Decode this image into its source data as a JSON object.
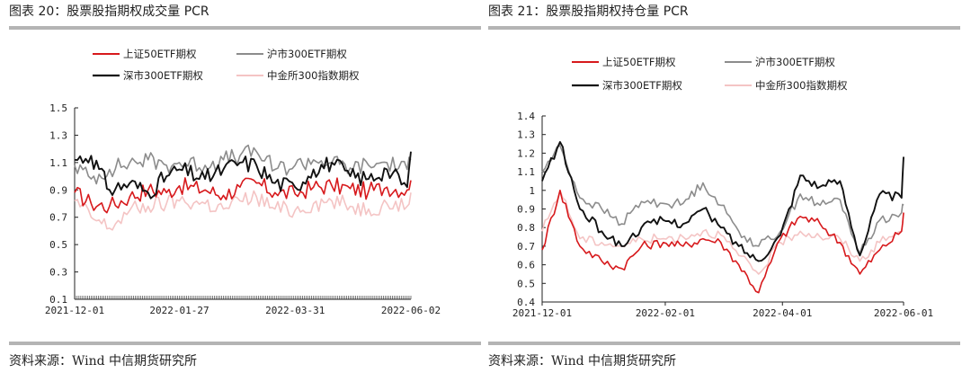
{
  "colors": {
    "sz50": "#d7191c",
    "sh300": "#8c8c8c",
    "sz300": "#111111",
    "cffex300": "#f4c4c4",
    "rule": "#b4b4b4"
  },
  "panels": [
    {
      "title": "图表 20：股票股指期权成交量 PCR",
      "source": "资料来源：Wind 中信期货研究所"
    },
    {
      "title": "图表 21：股票股指期权持仓量 PCR",
      "source": "资料来源：Wind 中信期货研究所"
    }
  ],
  "chart_data": [
    {
      "type": "line",
      "title": "图表 20：股票股指期权成交量 PCR",
      "x_range": [
        "2021-12-01",
        "2022-06-02"
      ],
      "x_ticks": [
        "2021-12-01",
        "2022-01-27",
        "2022-03-31",
        "2022-06-02"
      ],
      "ylim": [
        0.1,
        1.5
      ],
      "y_ticks": [
        "0.1",
        "0.3",
        "0.5",
        "0.7",
        "0.9",
        "1.1",
        "1.3",
        "1.5"
      ],
      "legend": {
        "placement": "top",
        "items": [
          "上证50ETF期权",
          "沪市300ETF期权",
          "深市300ETF期权",
          "中金所300指数期权"
        ]
      },
      "series": [
        {
          "name": "上证50ETF期权",
          "color": "#d7191c",
          "x": [
            "2021-12-01",
            "2021-12-10",
            "2021-12-20",
            "2021-12-31",
            "2022-01-10",
            "2022-01-20",
            "2022-01-27",
            "2022-02-10",
            "2022-02-20",
            "2022-03-01",
            "2022-03-10",
            "2022-03-20",
            "2022-03-31",
            "2022-04-10",
            "2022-04-20",
            "2022-04-30",
            "2022-05-10",
            "2022-05-20",
            "2022-05-31",
            "2022-06-02"
          ],
          "values": [
            0.88,
            0.8,
            0.78,
            0.85,
            0.9,
            0.88,
            0.93,
            0.9,
            0.86,
            0.92,
            0.95,
            0.88,
            0.87,
            0.92,
            0.93,
            0.91,
            0.89,
            0.92,
            0.9,
            0.97
          ]
        },
        {
          "name": "沪市300ETF期权",
          "color": "#8c8c8c",
          "x": [
            "2021-12-01",
            "2021-12-10",
            "2021-12-20",
            "2021-12-31",
            "2022-01-10",
            "2022-01-20",
            "2022-01-27",
            "2022-02-10",
            "2022-02-20",
            "2022-03-01",
            "2022-03-10",
            "2022-03-20",
            "2022-03-31",
            "2022-04-10",
            "2022-04-20",
            "2022-04-30",
            "2022-05-10",
            "2022-05-20",
            "2022-05-31",
            "2022-06-02"
          ],
          "values": [
            1.08,
            0.98,
            1.05,
            1.1,
            1.12,
            1.08,
            1.1,
            1.08,
            1.12,
            1.15,
            1.18,
            1.05,
            1.08,
            1.12,
            1.1,
            1.06,
            1.08,
            1.1,
            1.05,
            1.12
          ]
        },
        {
          "name": "深市300ETF期权",
          "color": "#111111",
          "x": [
            "2021-12-01",
            "2021-12-10",
            "2021-12-20",
            "2021-12-31",
            "2022-01-10",
            "2022-01-20",
            "2022-01-27",
            "2022-02-10",
            "2022-02-20",
            "2022-03-01",
            "2022-03-10",
            "2022-03-20",
            "2022-03-31",
            "2022-04-10",
            "2022-04-20",
            "2022-04-30",
            "2022-05-10",
            "2022-05-20",
            "2022-05-31",
            "2022-06-02"
          ],
          "values": [
            1.12,
            1.15,
            0.9,
            0.95,
            0.88,
            1.0,
            1.05,
            0.98,
            1.05,
            1.1,
            1.08,
            0.95,
            0.92,
            1.05,
            1.1,
            1.0,
            0.98,
            1.05,
            0.92,
            1.18
          ]
        },
        {
          "name": "中金所300指数期权",
          "color": "#f4c4c4",
          "x": [
            "2021-12-01",
            "2021-12-10",
            "2021-12-20",
            "2021-12-31",
            "2022-01-10",
            "2022-01-20",
            "2022-01-27",
            "2022-02-10",
            "2022-02-20",
            "2022-03-01",
            "2022-03-10",
            "2022-03-20",
            "2022-03-31",
            "2022-04-10",
            "2022-04-20",
            "2022-04-30",
            "2022-05-10",
            "2022-05-20",
            "2022-05-31",
            "2022-06-02"
          ],
          "values": [
            0.82,
            0.7,
            0.62,
            0.75,
            0.78,
            0.8,
            0.82,
            0.8,
            0.76,
            0.82,
            0.85,
            0.76,
            0.75,
            0.8,
            0.82,
            0.78,
            0.76,
            0.8,
            0.78,
            0.88
          ]
        }
      ]
    },
    {
      "type": "line",
      "title": "图表 21：股票股指期权持仓量 PCR",
      "x_range": [
        "2021-12-01",
        "2022-06-01"
      ],
      "x_ticks": [
        "2021-12-01",
        "2022-02-01",
        "2022-04-01",
        "2022-06-01"
      ],
      "ylim": [
        0.4,
        1.4
      ],
      "y_ticks": [
        "0.4",
        "0.5",
        "0.6",
        "0.7",
        "0.8",
        "0.9",
        "1",
        "1.1",
        "1.2",
        "1.3",
        "1.4"
      ],
      "legend": {
        "placement": "top",
        "items": [
          "上证50ETF期权",
          "沪市300ETF期权",
          "深市300ETF期权",
          "中金所300指数期权"
        ]
      },
      "series": [
        {
          "name": "上证50ETF期权",
          "color": "#d7191c",
          "x": [
            "2021-12-01",
            "2021-12-10",
            "2021-12-20",
            "2021-12-31",
            "2022-01-10",
            "2022-01-20",
            "2022-01-31",
            "2022-02-10",
            "2022-02-20",
            "2022-03-01",
            "2022-03-10",
            "2022-03-20",
            "2022-03-31",
            "2022-04-10",
            "2022-04-20",
            "2022-04-30",
            "2022-05-10",
            "2022-05-20",
            "2022-05-31",
            "2022-06-01"
          ],
          "values": [
            0.68,
            1.0,
            0.7,
            0.62,
            0.58,
            0.7,
            0.72,
            0.7,
            0.74,
            0.72,
            0.6,
            0.45,
            0.74,
            0.86,
            0.82,
            0.72,
            0.55,
            0.68,
            0.78,
            0.88
          ]
        },
        {
          "name": "沪市300ETF期权",
          "color": "#8c8c8c",
          "x": [
            "2021-12-01",
            "2021-12-10",
            "2021-12-20",
            "2021-12-31",
            "2022-01-10",
            "2022-01-20",
            "2022-01-31",
            "2022-02-10",
            "2022-02-20",
            "2022-03-01",
            "2022-03-10",
            "2022-03-20",
            "2022-03-31",
            "2022-04-10",
            "2022-04-20",
            "2022-04-30",
            "2022-05-10",
            "2022-05-20",
            "2022-05-31",
            "2022-06-01"
          ],
          "values": [
            1.1,
            1.24,
            0.96,
            0.9,
            0.82,
            0.94,
            0.93,
            0.93,
            1.04,
            0.92,
            0.78,
            0.7,
            0.78,
            0.98,
            0.92,
            0.95,
            0.66,
            0.84,
            0.88,
            0.92
          ]
        },
        {
          "name": "深市300ETF期权",
          "color": "#111111",
          "x": [
            "2021-12-01",
            "2021-12-10",
            "2021-12-20",
            "2021-12-31",
            "2022-01-10",
            "2022-01-20",
            "2022-01-31",
            "2022-02-10",
            "2022-02-20",
            "2022-03-01",
            "2022-03-10",
            "2022-03-20",
            "2022-03-31",
            "2022-04-10",
            "2022-04-20",
            "2022-04-30",
            "2022-05-10",
            "2022-05-20",
            "2022-05-31",
            "2022-06-01"
          ],
          "values": [
            1.05,
            1.26,
            0.9,
            0.78,
            0.7,
            0.8,
            0.84,
            0.82,
            0.9,
            0.8,
            0.7,
            0.62,
            0.76,
            1.08,
            1.02,
            1.05,
            0.65,
            0.98,
            0.96,
            1.18
          ]
        },
        {
          "name": "中金所300指数期权",
          "color": "#f4c4c4",
          "x": [
            "2021-12-01",
            "2021-12-10",
            "2021-12-20",
            "2021-12-31",
            "2022-01-10",
            "2022-01-20",
            "2022-01-31",
            "2022-02-10",
            "2022-02-20",
            "2022-03-01",
            "2022-03-10",
            "2022-03-20",
            "2022-03-31",
            "2022-04-10",
            "2022-04-20",
            "2022-04-30",
            "2022-05-10",
            "2022-05-20",
            "2022-05-31",
            "2022-06-01"
          ],
          "values": [
            0.78,
            1.0,
            0.74,
            0.72,
            0.7,
            0.74,
            0.74,
            0.75,
            0.78,
            0.76,
            0.65,
            0.55,
            0.72,
            0.78,
            0.75,
            0.74,
            0.62,
            0.72,
            0.78,
            0.88
          ]
        }
      ]
    }
  ]
}
